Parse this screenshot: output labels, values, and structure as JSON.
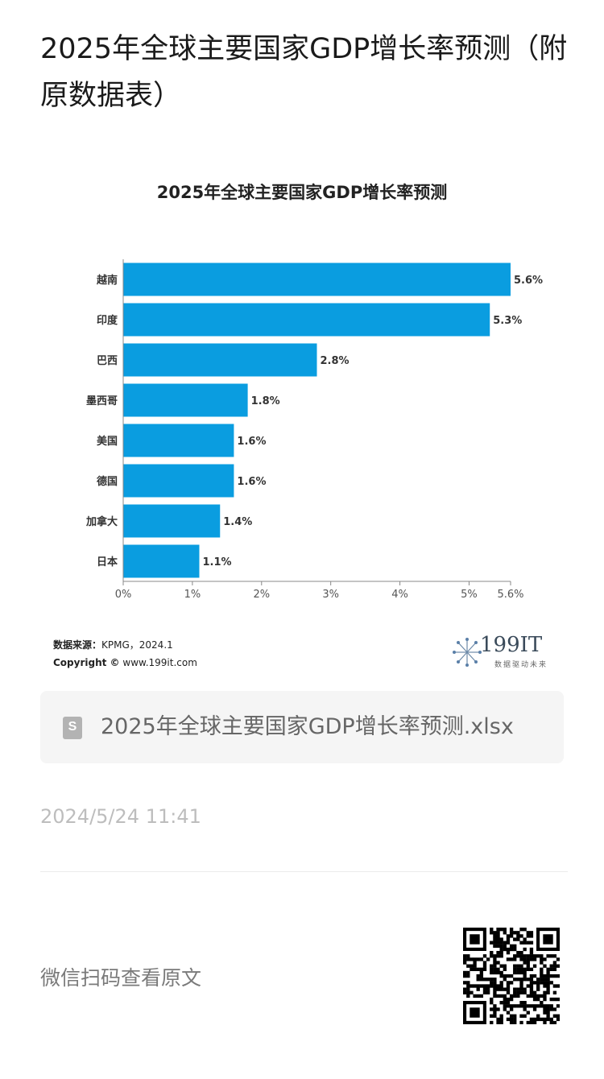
{
  "article": {
    "title": "2025年全球主要国家GDP增长率预测（附原数据表）"
  },
  "chart_data": {
    "type": "bar",
    "orientation": "horizontal",
    "title": "2025年全球主要国家GDP增长率预测",
    "categories": [
      "越南",
      "印度",
      "巴西",
      "墨西哥",
      "美国",
      "德国",
      "加拿大",
      "日本"
    ],
    "values": [
      5.6,
      5.3,
      2.8,
      1.8,
      1.6,
      1.6,
      1.4,
      1.1
    ],
    "value_labels": [
      "5.6%",
      "5.3%",
      "2.8%",
      "1.8%",
      "1.6%",
      "1.6%",
      "1.4%",
      "1.1%"
    ],
    "xlim": [
      0,
      5.6
    ],
    "xticks": [
      0,
      1,
      2,
      3,
      4,
      5,
      5.6
    ],
    "xtick_labels": [
      "0%",
      "1%",
      "2%",
      "3%",
      "4%",
      "5%",
      "5.6%"
    ],
    "bar_color": "#0a9de0",
    "grid": false,
    "legend": "none"
  },
  "chart_footer": {
    "source_label": "数据来源：",
    "source_value": "KPMG，2024.1",
    "copyright_label": "Copyright ©",
    "copyright_value": "www.199it.com"
  },
  "brand": {
    "name": "199IT",
    "slogan": "数据驱动未来",
    "icon": "dandelion-logo-icon"
  },
  "attachment": {
    "icon": "spreadsheet-file-icon",
    "icon_letter": "S",
    "file_name": "2025年全球主要国家GDP增长率预测.xlsx"
  },
  "meta": {
    "timestamp": "2024/5/24 11:41"
  },
  "footer": {
    "scan_text": "微信扫码查看原文",
    "qr_icon": "qr-code-icon"
  }
}
